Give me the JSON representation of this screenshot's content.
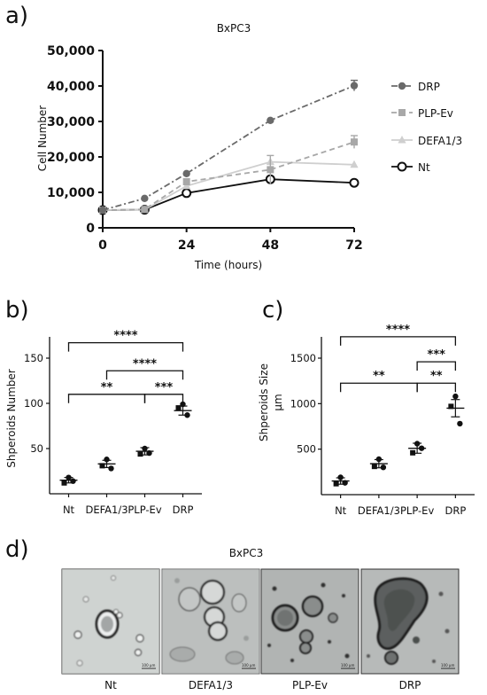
{
  "panels": {
    "a": "a)",
    "b": "b)",
    "c": "c)",
    "d": "d)"
  },
  "chart_data": [
    {
      "id": "a",
      "type": "line",
      "title": "BxPC3",
      "xlabel": "Time (hours)",
      "ylabel": "Cell Number",
      "x": [
        0,
        12,
        24,
        48,
        72
      ],
      "xticks": [
        "0",
        "24",
        "48",
        "72"
      ],
      "xlim": [
        0,
        72
      ],
      "yticks": [
        "0",
        "10,000",
        "20,000",
        "30,000",
        "40,000",
        "50,000"
      ],
      "ylim": [
        0,
        50000
      ],
      "legend_position": "top-right",
      "series": [
        {
          "name": "DRP",
          "values": [
            5000,
            8300,
            15300,
            30300,
            40100
          ],
          "errors": [
            0,
            0,
            0,
            0,
            1500
          ],
          "color": "#6a6a6a",
          "marker": "circle",
          "dash": "7,3,2,3"
        },
        {
          "name": "PLP-Ev",
          "values": [
            5000,
            5200,
            13000,
            16400,
            24200
          ],
          "errors": [
            0,
            0,
            0,
            4000,
            1800
          ],
          "color": "#a8a8a8",
          "marker": "square",
          "dash": "6,4"
        },
        {
          "name": "DEFA1/3",
          "values": [
            5000,
            5100,
            11800,
            18600,
            17800
          ],
          "errors": [
            0,
            0,
            0,
            0,
            0
          ],
          "color": "#cfcfcf",
          "marker": "triangle",
          "dash": ""
        },
        {
          "name": "Nt",
          "values": [
            5000,
            5100,
            9800,
            13700,
            12700
          ],
          "errors": [
            0,
            0,
            0,
            0,
            0
          ],
          "color": "#111111",
          "marker": "open-circle",
          "dash": ""
        }
      ]
    },
    {
      "id": "b",
      "type": "scatter",
      "ylabel": "Shperoids Number",
      "categories": [
        "Nt",
        "DEFA1/3",
        "PLP-Ev",
        "DRP"
      ],
      "yticks": [
        "50",
        "100",
        "150"
      ],
      "ylim": [
        0,
        150
      ],
      "points": [
        [
          18,
          12,
          14
        ],
        [
          38,
          31,
          28
        ],
        [
          50,
          44,
          45
        ],
        [
          99,
          95,
          87
        ]
      ],
      "means": [
        15,
        33,
        47,
        92
      ],
      "sem": [
        3,
        4,
        4,
        5
      ],
      "significance": [
        {
          "label": "****",
          "from": 0,
          "to": 3,
          "level": 167
        },
        {
          "label": "****",
          "from": 1,
          "to": 3,
          "level": 136
        },
        {
          "label": "**",
          "from": 0,
          "to": 2,
          "level": 110
        },
        {
          "label": "***",
          "from": 2,
          "to": 3,
          "level": 110
        }
      ]
    },
    {
      "id": "c",
      "type": "scatter",
      "ylabel": "Shperoids Size\nµm",
      "categories": [
        "Nt",
        "DEFA1/3",
        "PLP-Ev",
        "DRP"
      ],
      "yticks": [
        "500",
        "1000",
        "1500"
      ],
      "ylim": [
        0,
        1500
      ],
      "points": [
        [
          190,
          120,
          130
        ],
        [
          390,
          310,
          300
        ],
        [
          560,
          460,
          510
        ],
        [
          1080,
          970,
          780
        ]
      ],
      "means": [
        150,
        340,
        510,
        950
      ],
      "sem": [
        35,
        45,
        55,
        95
      ],
      "significance": [
        {
          "label": "****",
          "from": 0,
          "to": 3,
          "level": 1735
        },
        {
          "label": "***",
          "from": 2,
          "to": 3,
          "level": 1460
        },
        {
          "label": "**",
          "from": 0,
          "to": 2,
          "level": 1225
        },
        {
          "label": "**",
          "from": 2,
          "to": 3,
          "level": 1225
        }
      ]
    }
  ],
  "micrographs": {
    "title": "BxPC3",
    "scale_label": "100 µm",
    "labels": [
      "Nt",
      "DEFA1/3",
      "PLP-Ev",
      "DRP"
    ]
  }
}
